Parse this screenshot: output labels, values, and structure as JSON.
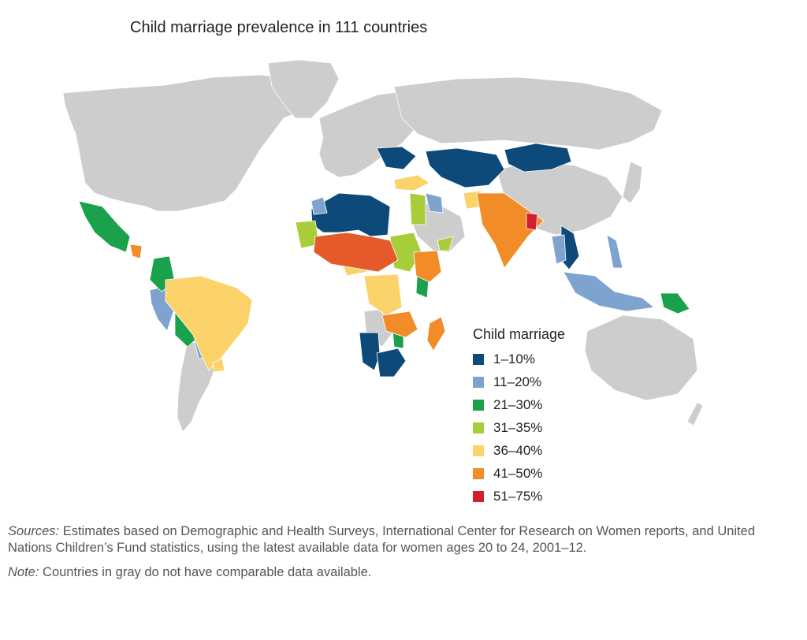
{
  "title": "Child marriage prevalence in 111 countries",
  "legend": {
    "title": "Child marriage",
    "items": [
      {
        "label": "1–10%",
        "color": "#0d4a7a"
      },
      {
        "label": "11–20%",
        "color": "#7fa3cf"
      },
      {
        "label": "21–30%",
        "color": "#1aa14b"
      },
      {
        "label": "31–35%",
        "color": "#a8cd3a"
      },
      {
        "label": "36–40%",
        "color": "#fcd36b"
      },
      {
        "label": "41–50%",
        "color": "#f28c28"
      },
      {
        "label": "51–75%",
        "color": "#d0202e"
      }
    ]
  },
  "colors": {
    "no_data": "#cdcdcd",
    "border": "#ffffff",
    "extra_36_40_dark": "#e45a2a"
  },
  "notes": {
    "sources_label": "Sources:",
    "sources_text": " Estimates based on Demographic and Health Surveys, International Center for Research on Women reports, and United Nations Children’s Fund statistics, using the latest available data for women ages 20 to 24, 2001–12.",
    "note_label": "Note:",
    "note_text": " Countries in gray do not have comparable data available."
  }
}
